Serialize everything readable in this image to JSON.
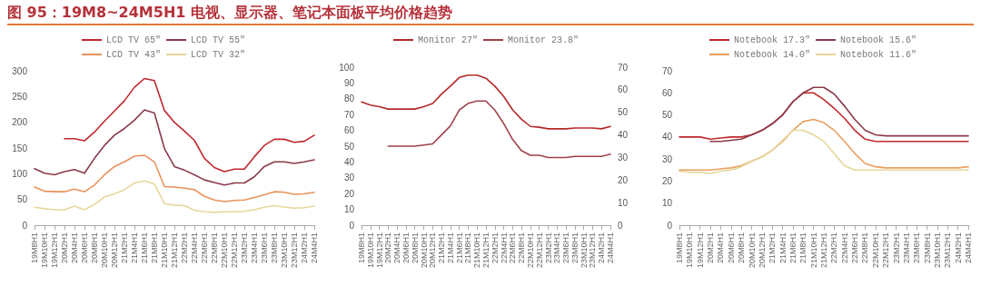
{
  "chart_data": [
    {
      "type": "line",
      "title": "图 95：19M8~24M5H1 电视、显示器、笔记本面板平均价格趋势",
      "categories": [
        "19M8H1",
        "19M10H1",
        "19M12H1",
        "20M2H1",
        "20M4H1",
        "20M6H1",
        "20M8H1",
        "20M10H1",
        "20M12H1",
        "21M2H1",
        "21M4H1",
        "21M6H1",
        "21M8H1",
        "21M10H1",
        "21M12H1",
        "22M2H1",
        "22M4H1",
        "22M6H1",
        "22M8H1",
        "22M10H1",
        "22M12H1",
        "23M2H1",
        "23M4H1",
        "23M6H1",
        "23M8H1",
        "23M10H1",
        "23M12H1",
        "24M2H1",
        "24M4H1"
      ],
      "series": [
        {
          "name": "LCD TV 65″",
          "color": "#c0282d",
          "values": [
            null,
            null,
            null,
            168,
            168,
            164,
            181,
            202,
            222,
            242,
            268,
            285,
            281,
            223,
            200,
            183,
            165,
            130,
            112,
            104,
            109,
            109,
            133,
            155,
            167,
            167,
            161,
            163,
            175
          ]
        },
        {
          "name": "LCD TV 55″",
          "color": "#8b3a4a",
          "values": [
            110,
            101,
            98,
            104,
            108,
            101,
            130,
            155,
            175,
            188,
            204,
            224,
            218,
            149,
            114,
            107,
            98,
            88,
            83,
            78,
            82,
            82,
            94,
            114,
            123,
            123,
            120,
            123,
            127
          ]
        },
        {
          "name": "LCD TV 43″",
          "color": "#e8935a",
          "values": [
            74,
            66,
            65,
            65,
            70,
            65,
            78,
            98,
            114,
            123,
            134,
            136,
            123,
            75,
            74,
            72,
            69,
            56,
            49,
            46,
            48,
            49,
            54,
            59,
            65,
            64,
            60,
            61,
            64
          ]
        },
        {
          "name": "LCD TV 32″",
          "color": "#e6d79a",
          "values": [
            35,
            32,
            30,
            30,
            37,
            30,
            40,
            55,
            61,
            69,
            82,
            86,
            80,
            42,
            39,
            38,
            29,
            26,
            25,
            26,
            26,
            27,
            30,
            35,
            38,
            35,
            33,
            34,
            37
          ]
        }
      ],
      "ylim": [
        0,
        300
      ],
      "yticks": [
        0,
        50,
        100,
        150,
        200,
        250,
        300
      ],
      "legend": "top",
      "grid": false
    },
    {
      "type": "line",
      "categories": [
        "19M8H1",
        "19M10H1",
        "19M12H1",
        "20M2H1",
        "20M4H1",
        "20M6H1",
        "20M8H1",
        "20M10H1",
        "20M12H1",
        "21M2H1",
        "21M4H1",
        "21M6H1",
        "21M8H1",
        "21M10H1",
        "21M12H1",
        "22M2H1",
        "22M4H1",
        "22M6H1",
        "22M8H1",
        "22M10H1",
        "22M12H1",
        "23M2H1",
        "23M4H1",
        "23M6H1",
        "23M8H1",
        "23M10H1",
        "23M12H1",
        "24M2H1",
        "24M4H1"
      ],
      "series": [
        {
          "name": "Monitor 27″",
          "color": "#b52a2a",
          "values": [
            78,
            76,
            75,
            73.5,
            73.5,
            73.5,
            73.5,
            75,
            77,
            83,
            88,
            93.5,
            95,
            95,
            93,
            88,
            81.5,
            73,
            67,
            62.5,
            62,
            61,
            61,
            61,
            61.5,
            61.5,
            61.5,
            61,
            62.5
          ]
        },
        {
          "name": "Monitor 23.8″",
          "color": "#a0404a",
          "axis": "y2",
          "values": [
            null,
            null,
            null,
            35,
            35,
            35,
            35,
            35.5,
            36,
            40,
            44,
            51,
            54,
            55,
            55,
            51,
            45,
            38,
            33,
            31,
            31,
            30,
            30,
            30,
            30.5,
            30.5,
            30.5,
            30.5,
            31.5
          ]
        }
      ],
      "ylim": [
        0,
        100
      ],
      "yticks": [
        0,
        10,
        20,
        30,
        40,
        50,
        60,
        70,
        80,
        90,
        100
      ],
      "y2lim": [
        0,
        70
      ],
      "y2ticks": [
        0,
        10,
        20,
        30,
        40,
        50,
        60,
        70
      ],
      "legend": "top",
      "grid": false
    },
    {
      "type": "line",
      "categories": [
        "19M8H1",
        "19M10H1",
        "19M12H1",
        "20M2H1",
        "20M4H1",
        "20M6H1",
        "20M8H1",
        "20M10H1",
        "20M12H1",
        "21M2H1",
        "21M4H1",
        "21M6H1",
        "21M8H1",
        "21M10H1",
        "21M12H1",
        "22M2H1",
        "22M4H1",
        "22M6H1",
        "22M8H1",
        "22M10H1",
        "22M12H1",
        "23M2H1",
        "23M4H1",
        "23M6H1",
        "23M8H1",
        "23M10H1",
        "23M12H1",
        "24M2H1",
        "24M4H1"
      ],
      "series": [
        {
          "name": "Notebook 17.3″",
          "color": "#c0282d",
          "values": [
            40,
            40,
            40,
            39,
            39.5,
            40,
            40,
            41,
            43,
            46,
            50,
            56,
            60,
            60,
            57,
            53,
            48.5,
            43,
            39,
            38,
            38,
            38,
            38,
            38,
            38,
            38,
            38,
            38,
            38
          ]
        },
        {
          "name": "Notebook 15.6″",
          "color": "#8b3a4a",
          "values": [
            null,
            null,
            null,
            38,
            38,
            38.5,
            39,
            41,
            43,
            46,
            50,
            56,
            60,
            62.5,
            62.5,
            59.5,
            54,
            48,
            43,
            41,
            40.5,
            40.5,
            40.5,
            40.5,
            40.5,
            40.5,
            40.5,
            40.5,
            40.5
          ]
        },
        {
          "name": "Notebook 14.0″",
          "color": "#e8a060",
          "values": [
            25,
            25,
            25,
            25,
            25.5,
            26,
            27,
            29,
            31,
            34,
            38,
            43,
            47,
            48,
            46.5,
            43,
            38,
            32.5,
            28,
            26.5,
            26,
            26,
            26,
            26,
            26,
            26,
            26,
            26,
            26.5
          ]
        },
        {
          "name": "Notebook 11.6″",
          "color": "#e6d79a",
          "values": [
            24.5,
            24,
            24,
            23.5,
            24.5,
            25,
            26.5,
            29,
            31,
            34,
            38.5,
            43,
            43,
            41,
            38,
            32.5,
            27,
            25,
            25,
            25,
            25,
            25,
            25,
            25,
            25,
            25,
            25,
            25,
            25
          ]
        }
      ],
      "ylim": [
        0,
        70
      ],
      "yticks": [
        0,
        10,
        20,
        30,
        40,
        50,
        60,
        70
      ],
      "legend": "top",
      "grid": false
    }
  ]
}
